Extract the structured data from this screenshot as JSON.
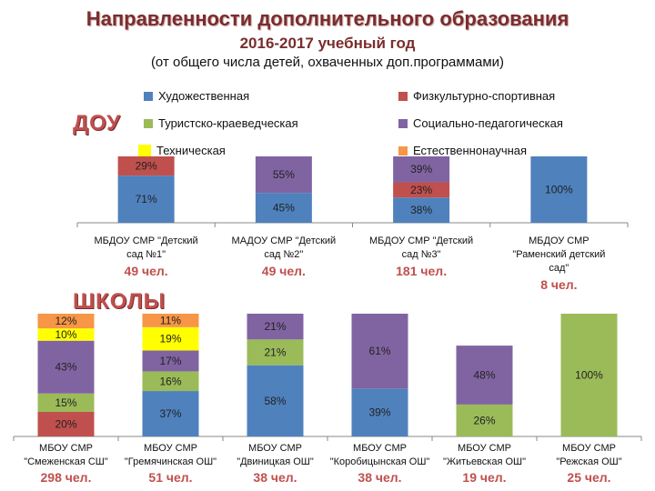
{
  "title": "Направленности дополнительного образования",
  "subtitle": "2016-2017 учебный год",
  "note": "(от общего числа детей, охваченных доп.программами)",
  "sections": {
    "dou": "ДОУ",
    "schools": "ШКОЛЫ"
  },
  "legend": [
    {
      "name": "Художественная",
      "color": "#4f81bd"
    },
    {
      "name": "Физкультурно-спортивная",
      "color": "#c0504d"
    },
    {
      "name": "Туристско-краеведческая",
      "color": "#9bbb59"
    },
    {
      "name": "Социально-педагогическая",
      "color": "#8064a2"
    },
    {
      "name": "Техническая",
      "color": "#ffff00"
    },
    {
      "name": "Естественнонаучная",
      "color": "#f79646"
    }
  ],
  "chart_data": [
    {
      "type": "bar",
      "stacked": true,
      "group": "ДОУ",
      "series_order": [
        "Художественная",
        "Физкультурно-спортивная",
        "Туристско-краеведческая",
        "Социально-педагогическая",
        "Техническая",
        "Естественнонаучная"
      ],
      "categories": [
        {
          "label": [
            "МБДОУ СМР \"Детский",
            "сад №1\""
          ],
          "count": "49 чел.",
          "values": [
            71,
            29,
            0,
            0,
            0,
            0
          ]
        },
        {
          "label": [
            "МАДОУ СМР \"Детский",
            "сад №2\""
          ],
          "count": "49 чел.",
          "values": [
            45,
            0,
            0,
            55,
            0,
            0
          ]
        },
        {
          "label": [
            "МБДОУ СМР \"Детский",
            "сад №3\""
          ],
          "count": "181 чел.",
          "values": [
            38,
            23,
            0,
            39,
            0,
            0
          ]
        },
        {
          "label": [
            "МБДОУ СМР",
            "\"Раменский детский",
            "сад\""
          ],
          "count": "8 чел.",
          "values": [
            100,
            0,
            0,
            0,
            0,
            0
          ]
        }
      ]
    },
    {
      "type": "bar",
      "stacked": true,
      "group": "ШКОЛЫ",
      "series_order": [
        "Художественная",
        "Физкультурно-спортивная",
        "Туристско-краеведческая",
        "Социально-педагогическая",
        "Техническая",
        "Естественнонаучная"
      ],
      "categories": [
        {
          "label": [
            "МБОУ СМР",
            "\"Смеженская СШ\""
          ],
          "count": "298 чел.",
          "values": [
            0,
            20,
            15,
            43,
            10,
            12
          ]
        },
        {
          "label": [
            "МБОУ СМР",
            "\"Гремячинская ОШ\""
          ],
          "count": "51 чел.",
          "values": [
            37,
            0,
            16,
            17,
            19,
            11
          ]
        },
        {
          "label": [
            "МБОУ СМР",
            "\"Двиницкая ОШ\""
          ],
          "count": "38 чел.",
          "values": [
            58,
            0,
            21,
            21,
            0,
            0
          ]
        },
        {
          "label": [
            "МБОУ СМР",
            "\"Коробицынская ОШ\""
          ],
          "count": "38 чел.",
          "values": [
            39,
            0,
            0,
            61,
            0,
            0
          ]
        },
        {
          "label": [
            "МБОУ СМР",
            "\"Житьевская ОШ\""
          ],
          "count": "19 чел.",
          "values": [
            0,
            0,
            26,
            48,
            0,
            0
          ]
        },
        {
          "label": [
            "МБОУ   СМР",
            "\"Режская ОШ\""
          ],
          "count": "25 чел.",
          "values": [
            0,
            0,
            100,
            0,
            0,
            0
          ]
        }
      ]
    }
  ]
}
